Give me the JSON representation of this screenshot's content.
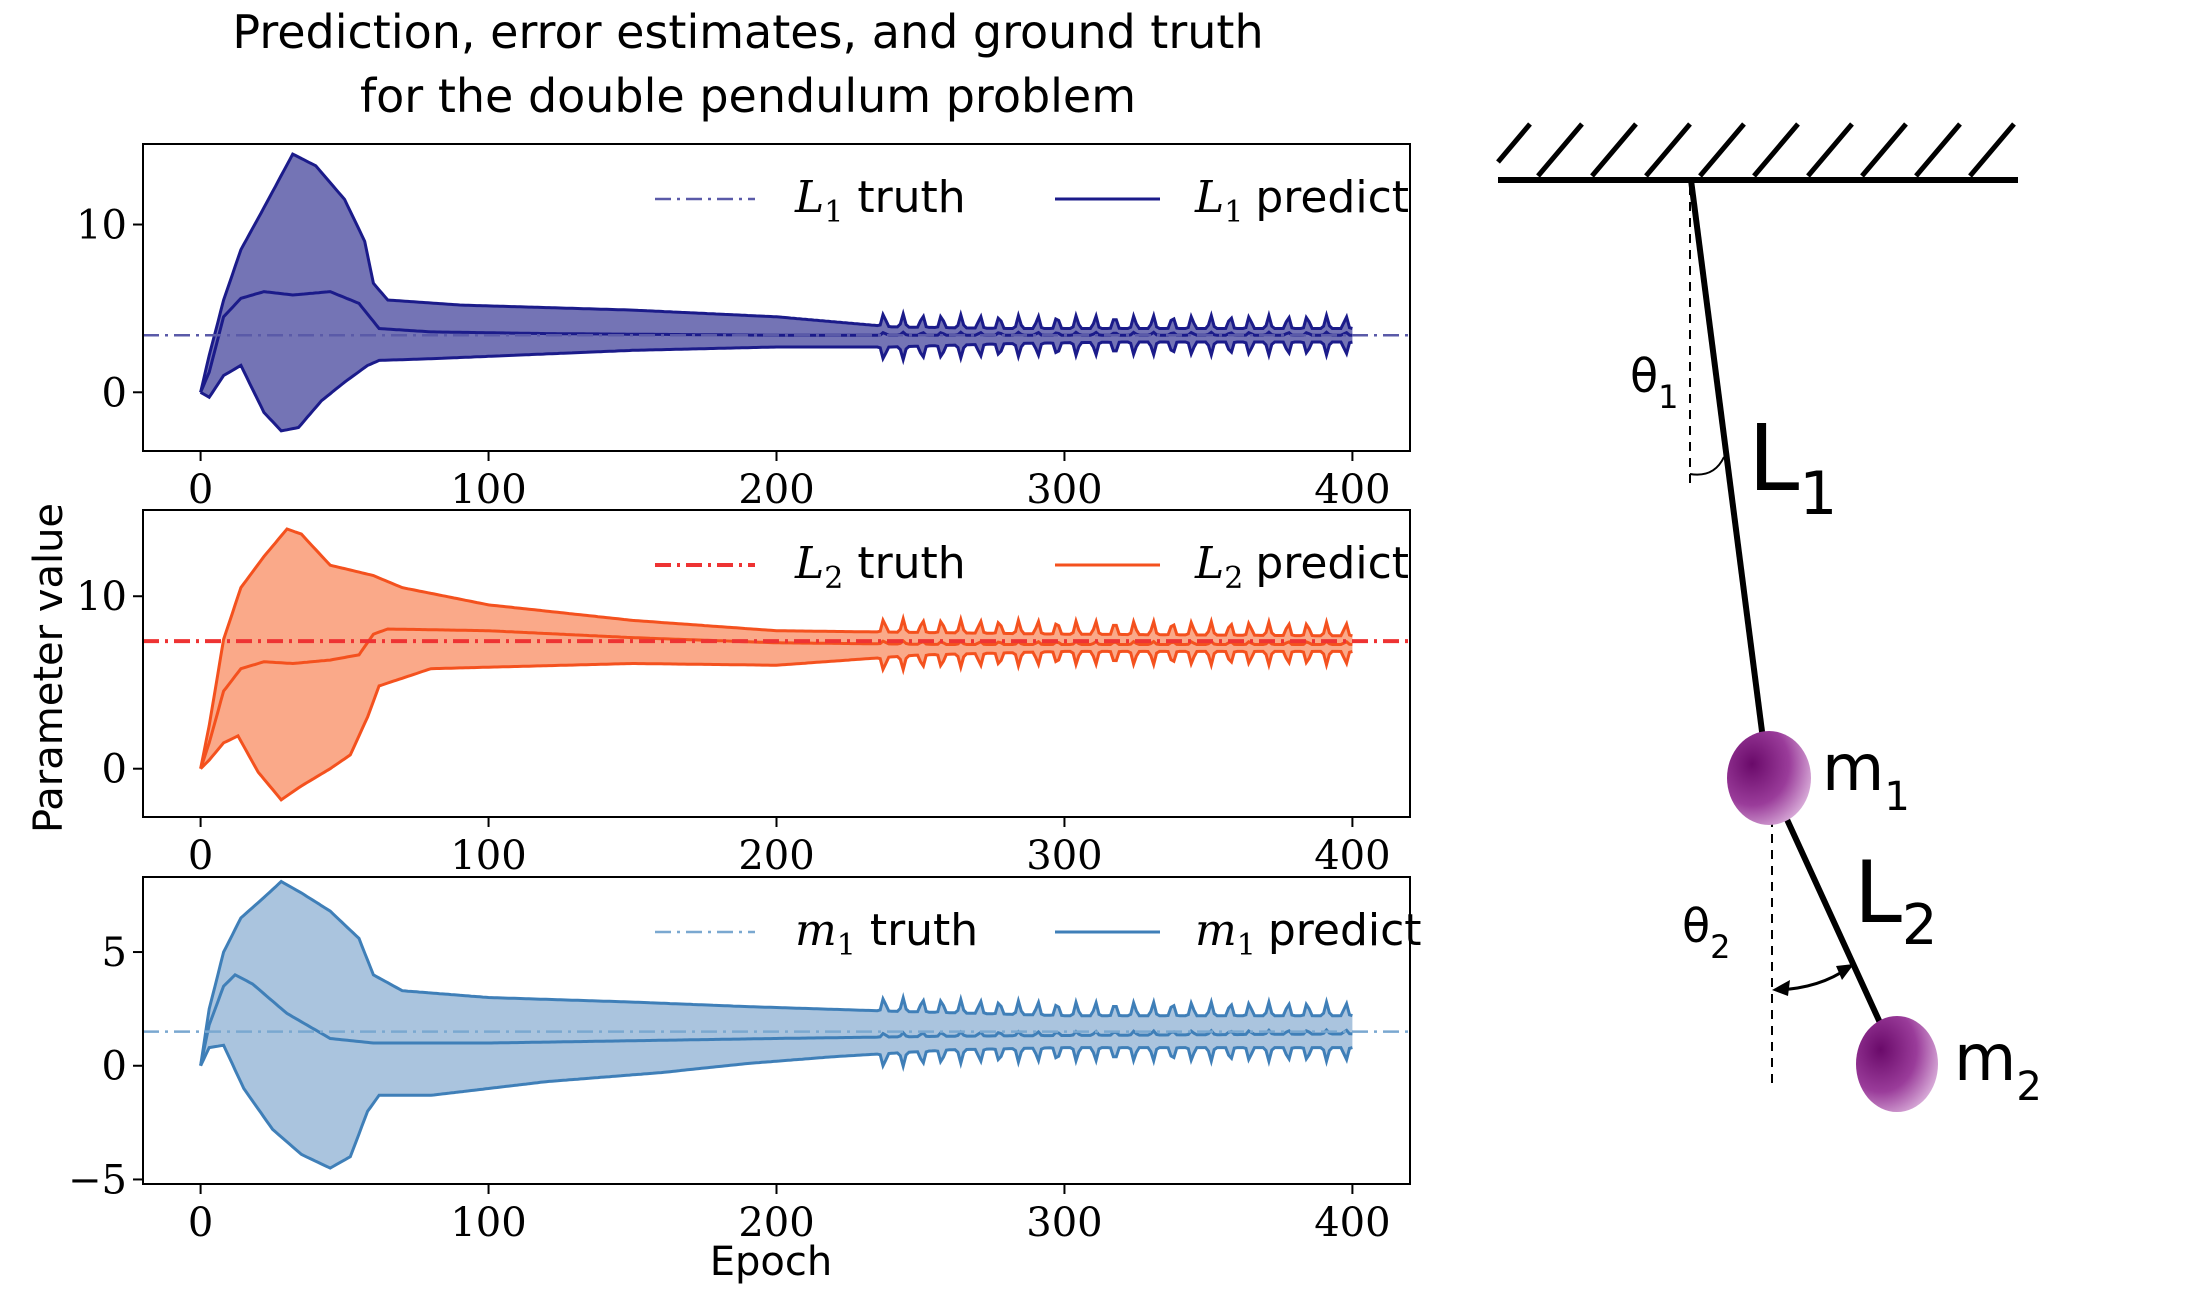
{
  "figure": {
    "title_line1": "Prediction, error estimates, and ground truth",
    "title_line2": "for the double pendulum problem",
    "ylabel": "Parameter value",
    "xlabel": "Epoch"
  },
  "diagram": {
    "theta1": "θ",
    "theta1_sub": "1",
    "theta2": "θ",
    "theta2_sub": "2",
    "L1": "L",
    "L1_sub": "1",
    "L2": "L",
    "L2_sub": "2",
    "m1": "m",
    "m1_sub": "1",
    "m2": "m",
    "m2_sub": "2",
    "mass_color": "#8b1a8b",
    "rod_color": "#000000"
  },
  "chart_data": [
    {
      "type": "line",
      "xlim": [
        -20,
        420
      ],
      "ylim": [
        -3.5,
        14.8
      ],
      "xticks": [
        0,
        100,
        200,
        300,
        400
      ],
      "yticks": [
        0,
        10
      ],
      "color": "#1b1b8a",
      "fill_color": "#5c5ca8",
      "truth_color": "#5a5aa8",
      "truth_value": 3.4,
      "legend_truth_sym": "L",
      "legend_truth_sub": "1",
      "legend_truth_text": "truth",
      "legend_pred_sym": "L",
      "legend_pred_sub": "1",
      "legend_pred_text": "predict",
      "predict": [
        [
          0,
          0
        ],
        [
          3,
          1.2
        ],
        [
          8,
          4.5
        ],
        [
          14,
          5.6
        ],
        [
          22,
          6.0
        ],
        [
          32,
          5.8
        ],
        [
          45,
          6.0
        ],
        [
          55,
          5.3
        ],
        [
          62,
          3.8
        ],
        [
          80,
          3.6
        ],
        [
          120,
          3.5
        ],
        [
          200,
          3.4
        ],
        [
          300,
          3.4
        ],
        [
          400,
          3.4
        ]
      ],
      "upper": [
        [
          0,
          0
        ],
        [
          3,
          2.2
        ],
        [
          8,
          5.5
        ],
        [
          14,
          8.5
        ],
        [
          22,
          11
        ],
        [
          32,
          14.2
        ],
        [
          40,
          13.5
        ],
        [
          50,
          11.5
        ],
        [
          57,
          9
        ],
        [
          60,
          6.5
        ],
        [
          65,
          5.5
        ],
        [
          90,
          5.2
        ],
        [
          150,
          4.9
        ],
        [
          200,
          4.5
        ],
        [
          240,
          3.9
        ],
        [
          280,
          3.8
        ],
        [
          320,
          3.8
        ],
        [
          400,
          3.8
        ]
      ],
      "lower": [
        [
          0,
          0
        ],
        [
          3,
          -0.3
        ],
        [
          8,
          1.0
        ],
        [
          14,
          1.6
        ],
        [
          22,
          -1.2
        ],
        [
          28,
          -2.3
        ],
        [
          34,
          -2.1
        ],
        [
          42,
          -0.5
        ],
        [
          50,
          0.6
        ],
        [
          58,
          1.6
        ],
        [
          62,
          1.9
        ],
        [
          80,
          2.0
        ],
        [
          150,
          2.5
        ],
        [
          200,
          2.7
        ],
        [
          240,
          2.7
        ],
        [
          280,
          2.9
        ],
        [
          320,
          3.0
        ],
        [
          400,
          3.0
        ]
      ]
    },
    {
      "type": "line",
      "xlim": [
        -20,
        420
      ],
      "ylim": [
        -2.8,
        15.0
      ],
      "xticks": [
        0,
        100,
        200,
        300,
        400
      ],
      "yticks": [
        0,
        10
      ],
      "color": "#f4511e",
      "fill_color": "#f99a74",
      "truth_color": "#ee3333",
      "truth_value": 7.4,
      "legend_truth_sym": "L",
      "legend_truth_sub": "2",
      "legend_truth_text": "truth",
      "legend_pred_sym": "L",
      "legend_pred_sub": "2",
      "legend_pred_text": "predict",
      "predict": [
        [
          0,
          0
        ],
        [
          3,
          1.5
        ],
        [
          8,
          4.5
        ],
        [
          14,
          5.8
        ],
        [
          22,
          6.2
        ],
        [
          32,
          6.1
        ],
        [
          45,
          6.3
        ],
        [
          55,
          6.6
        ],
        [
          60,
          7.8
        ],
        [
          65,
          8.1
        ],
        [
          100,
          8.0
        ],
        [
          150,
          7.6
        ],
        [
          200,
          7.3
        ],
        [
          260,
          7.2
        ],
        [
          400,
          7.2
        ]
      ],
      "upper": [
        [
          0,
          0
        ],
        [
          3,
          2.5
        ],
        [
          8,
          7.5
        ],
        [
          14,
          10.5
        ],
        [
          22,
          12.3
        ],
        [
          30,
          13.9
        ],
        [
          35,
          13.6
        ],
        [
          45,
          11.8
        ],
        [
          55,
          11.4
        ],
        [
          60,
          11.2
        ],
        [
          70,
          10.5
        ],
        [
          100,
          9.5
        ],
        [
          150,
          8.6
        ],
        [
          200,
          8.0
        ],
        [
          250,
          7.9
        ],
        [
          300,
          7.8
        ],
        [
          400,
          7.7
        ]
      ],
      "lower": [
        [
          0,
          0
        ],
        [
          3,
          0.5
        ],
        [
          8,
          1.5
        ],
        [
          13,
          1.9
        ],
        [
          20,
          -0.2
        ],
        [
          28,
          -1.8
        ],
        [
          35,
          -1.0
        ],
        [
          45,
          0.0
        ],
        [
          52,
          0.8
        ],
        [
          58,
          3.0
        ],
        [
          62,
          4.8
        ],
        [
          80,
          5.8
        ],
        [
          150,
          6.1
        ],
        [
          200,
          6.0
        ],
        [
          250,
          6.6
        ],
        [
          300,
          6.8
        ],
        [
          400,
          6.8
        ]
      ]
    },
    {
      "type": "line",
      "xlim": [
        -20,
        420
      ],
      "ylim": [
        -5.2,
        8.3
      ],
      "xticks": [
        0,
        100,
        200,
        300,
        400
      ],
      "yticks": [
        -5,
        0,
        5
      ],
      "ytick_labels": [
        "−5",
        "0",
        "5"
      ],
      "color": "#3f7fb8",
      "fill_color": "#9bbad8",
      "truth_color": "#7aa8d0",
      "truth_value": 1.5,
      "legend_truth_sym": "m",
      "legend_truth_sub": "1",
      "legend_truth_text": "truth",
      "legend_pred_sym": "m",
      "legend_pred_sub": "1",
      "legend_pred_text": "predict",
      "predict": [
        [
          0,
          0
        ],
        [
          3,
          1.8
        ],
        [
          8,
          3.5
        ],
        [
          12,
          4.0
        ],
        [
          18,
          3.6
        ],
        [
          30,
          2.3
        ],
        [
          45,
          1.2
        ],
        [
          60,
          1.0
        ],
        [
          100,
          1.0
        ],
        [
          200,
          1.2
        ],
        [
          260,
          1.3
        ],
        [
          400,
          1.4
        ]
      ],
      "upper": [
        [
          0,
          0
        ],
        [
          3,
          2.5
        ],
        [
          8,
          5.0
        ],
        [
          14,
          6.5
        ],
        [
          22,
          7.4
        ],
        [
          28,
          8.1
        ],
        [
          35,
          7.6
        ],
        [
          45,
          6.8
        ],
        [
          55,
          5.6
        ],
        [
          60,
          4.0
        ],
        [
          70,
          3.3
        ],
        [
          100,
          3.0
        ],
        [
          150,
          2.8
        ],
        [
          190,
          2.6
        ],
        [
          240,
          2.4
        ],
        [
          300,
          2.2
        ],
        [
          400,
          2.2
        ]
      ],
      "lower": [
        [
          0,
          0
        ],
        [
          3,
          0.8
        ],
        [
          8,
          0.9
        ],
        [
          15,
          -1.0
        ],
        [
          25,
          -2.8
        ],
        [
          35,
          -3.9
        ],
        [
          45,
          -4.5
        ],
        [
          52,
          -4.0
        ],
        [
          58,
          -2.0
        ],
        [
          62,
          -1.3
        ],
        [
          80,
          -1.3
        ],
        [
          120,
          -0.7
        ],
        [
          160,
          -0.3
        ],
        [
          190,
          0.1
        ],
        [
          220,
          0.4
        ],
        [
          260,
          0.7
        ],
        [
          300,
          0.8
        ],
        [
          400,
          0.8
        ]
      ]
    }
  ]
}
